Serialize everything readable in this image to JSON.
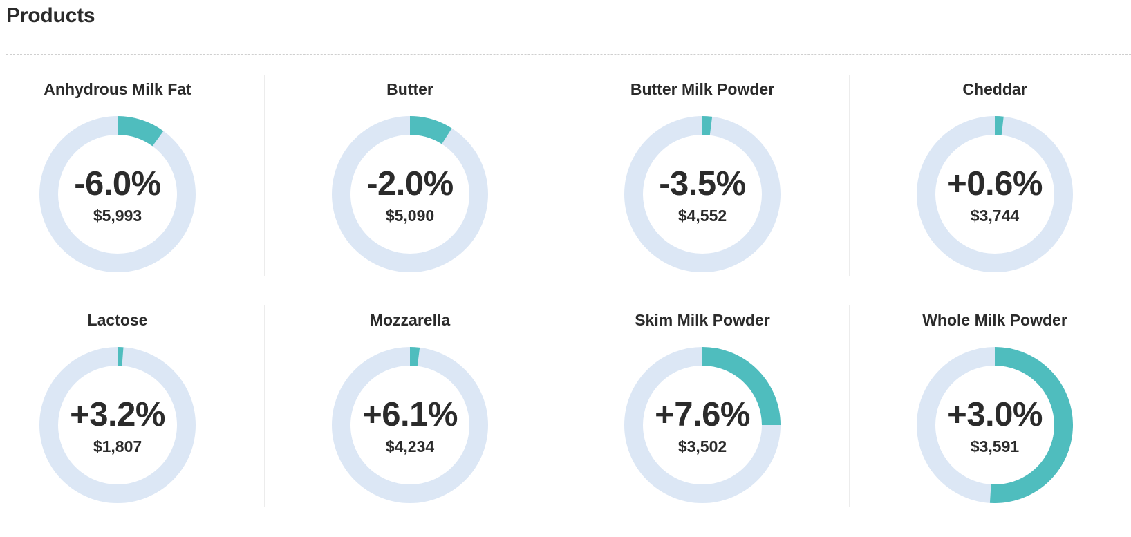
{
  "page": {
    "title": "Products"
  },
  "colors": {
    "track": "#dce7f5",
    "fill": "#4fbdbe",
    "text": "#2b2b2b"
  },
  "products": [
    {
      "name": "Anhydrous Milk Fat",
      "change": "-6.0%",
      "price": "$5,993",
      "gauge_fraction": 0.1
    },
    {
      "name": "Butter",
      "change": "-2.0%",
      "price": "$5,090",
      "gauge_fraction": 0.09
    },
    {
      "name": "Butter Milk Powder",
      "change": "-3.5%",
      "price": "$4,552",
      "gauge_fraction": 0.02
    },
    {
      "name": "Cheddar",
      "change": "+0.6%",
      "price": "$3,744",
      "gauge_fraction": 0.018
    },
    {
      "name": "Lactose",
      "change": "+3.2%",
      "price": "$1,807",
      "gauge_fraction": 0.012
    },
    {
      "name": "Mozzarella",
      "change": "+6.1%",
      "price": "$4,234",
      "gauge_fraction": 0.02
    },
    {
      "name": "Skim Milk Powder",
      "change": "+7.6%",
      "price": "$3,502",
      "gauge_fraction": 0.25
    },
    {
      "name": "Whole Milk Powder",
      "change": "+3.0%",
      "price": "$3,591",
      "gauge_fraction": 0.51
    }
  ]
}
